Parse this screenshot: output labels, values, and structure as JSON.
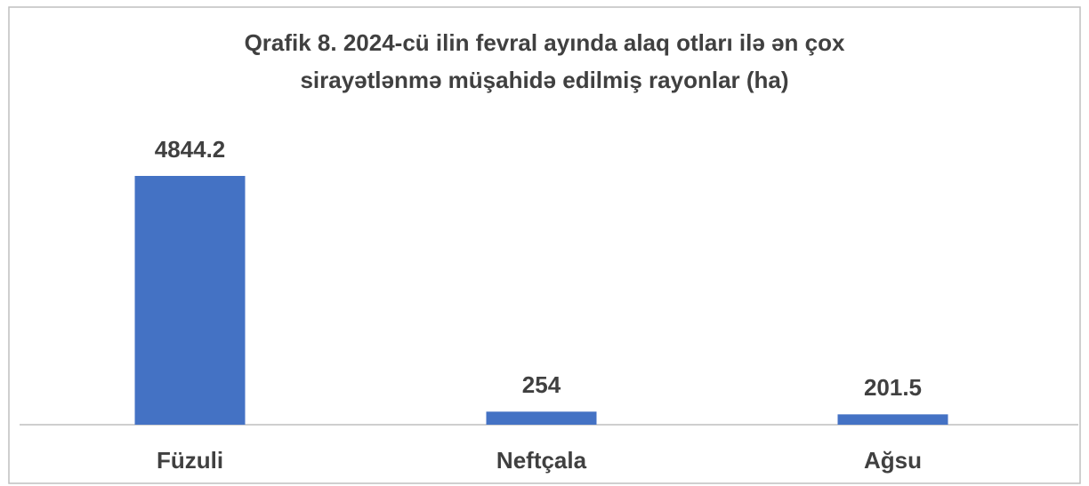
{
  "chart_data": {
    "type": "bar",
    "title": [
      "Qrafik 8. 2024-cü ilin fevral ayında alaq otları ilə ən çox",
      "sirayətlənmə müşahidə edilmiş rayonlar (ha)"
    ],
    "categories": [
      "Füzuli",
      "Neftçala",
      "Ağsu"
    ],
    "values": [
      4844.2,
      254,
      201.5
    ],
    "color": "#4472c4"
  }
}
